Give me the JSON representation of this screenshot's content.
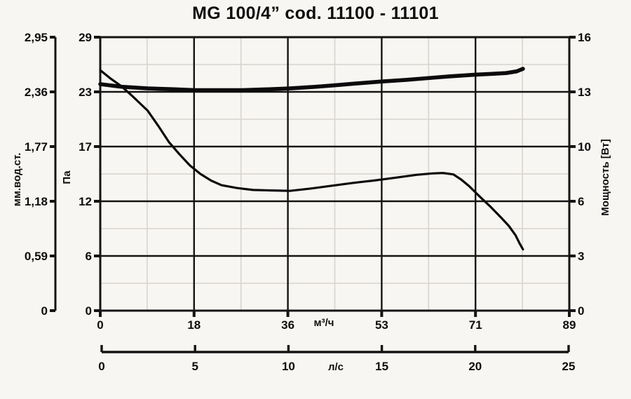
{
  "title": "MG 100/4” cod. 11100 - 11101",
  "colors": {
    "background": "#f8f6f2",
    "curve": "#0b0b0b",
    "major_grid": "#141414",
    "minor_grid": "#d8d4ce"
  },
  "chart_data": {
    "type": "line",
    "title": "MG 100/4” cod. 11100 - 11101",
    "grid": "major black + minor light-gray at half steps",
    "legend_position": "none",
    "axes": {
      "left_outer": {
        "label": "мм.вод.ст.",
        "ticks": [
          "0",
          "0,59",
          "1,18",
          "1,77",
          "2,36",
          "2,95"
        ],
        "max": 2.95
      },
      "left_inner": {
        "label": "Па",
        "ticks": [
          "0",
          "6",
          "12",
          "17",
          "23",
          "29"
        ],
        "max": 29
      },
      "right": {
        "label": "Мощность [Вт]",
        "ticks": [
          "0",
          "3",
          "6",
          "10",
          "13",
          "16"
        ],
        "max": 16
      },
      "bottom": {
        "label": "м³/ч",
        "ticks": [
          "0",
          "18",
          "36",
          "53",
          "71",
          "89"
        ],
        "max": 89
      },
      "bottom_secondary": {
        "label": "л/с",
        "ticks": [
          "0",
          "5",
          "10",
          "15",
          "20",
          "25"
        ],
        "max": 25
      }
    },
    "series": [
      {
        "name": "pressure-curve",
        "y_axis": "Па",
        "x_axis": "м³/ч",
        "points": [
          [
            0,
            25.5
          ],
          [
            2,
            24.6
          ],
          [
            4,
            23.8
          ],
          [
            6,
            22.8
          ],
          [
            9,
            21.2
          ],
          [
            11,
            19.6
          ],
          [
            13,
            17.9
          ],
          [
            15,
            16.6
          ],
          [
            17,
            15.4
          ],
          [
            19,
            14.5
          ],
          [
            21,
            13.8
          ],
          [
            23,
            13.3
          ],
          [
            26,
            13.0
          ],
          [
            29,
            12.8
          ],
          [
            32,
            12.75
          ],
          [
            36,
            12.7
          ],
          [
            40,
            12.95
          ],
          [
            44,
            13.25
          ],
          [
            48,
            13.55
          ],
          [
            52,
            13.8
          ],
          [
            56,
            14.1
          ],
          [
            60,
            14.4
          ],
          [
            63,
            14.55
          ],
          [
            65,
            14.6
          ],
          [
            67,
            14.45
          ],
          [
            68.5,
            13.9
          ],
          [
            70,
            13.2
          ],
          [
            72,
            12.1
          ],
          [
            74,
            11.05
          ],
          [
            76,
            9.9
          ],
          [
            77.5,
            9.0
          ],
          [
            78.8,
            8.0
          ],
          [
            79.6,
            7.1
          ],
          [
            80.2,
            6.5
          ]
        ]
      },
      {
        "name": "power-curve",
        "y_axis": "Вт",
        "x_axis": "м³/ч",
        "points": [
          [
            0,
            13.25
          ],
          [
            4,
            13.1
          ],
          [
            9,
            13.0
          ],
          [
            14,
            12.95
          ],
          [
            18,
            12.9
          ],
          [
            23,
            12.9
          ],
          [
            27,
            12.9
          ],
          [
            32,
            12.95
          ],
          [
            36,
            13.0
          ],
          [
            41,
            13.1
          ],
          [
            45,
            13.2
          ],
          [
            49,
            13.3
          ],
          [
            53,
            13.4
          ],
          [
            58,
            13.5
          ],
          [
            62,
            13.6
          ],
          [
            66,
            13.7
          ],
          [
            71,
            13.8
          ],
          [
            74,
            13.85
          ],
          [
            77,
            13.9
          ],
          [
            79,
            14.0
          ],
          [
            80.2,
            14.15
          ]
        ]
      }
    ]
  }
}
